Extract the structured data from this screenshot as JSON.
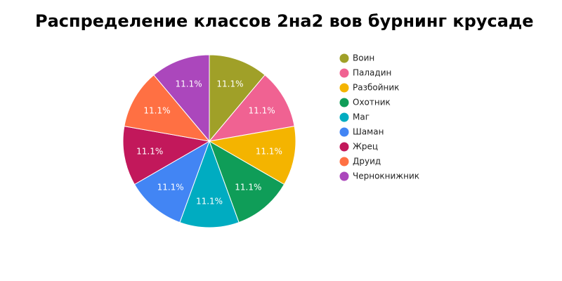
{
  "chart_data": {
    "type": "pie",
    "title": "Распределение классов 2на2 вов бурнинг крусаде",
    "categories": [
      "Воин",
      "Паладин",
      "Разбойник",
      "Охотник",
      "Маг",
      "Шаман",
      "Жрец",
      "Друид",
      "Чернокнижник"
    ],
    "values": [
      11.1,
      11.1,
      11.1,
      11.1,
      11.1,
      11.1,
      11.1,
      11.1,
      11.1
    ],
    "value_labels": [
      "11.1%",
      "11.1%",
      "11.1%",
      "11.1%",
      "11.1%",
      "11.1%",
      "11.1%",
      "11.1%",
      "11.1%"
    ],
    "colors": [
      "#a0a028",
      "#f06292",
      "#f4b400",
      "#0f9d58",
      "#00acc1",
      "#4285f4",
      "#c2185b",
      "#ff7043",
      "#ab47bc"
    ],
    "legend": "right"
  }
}
